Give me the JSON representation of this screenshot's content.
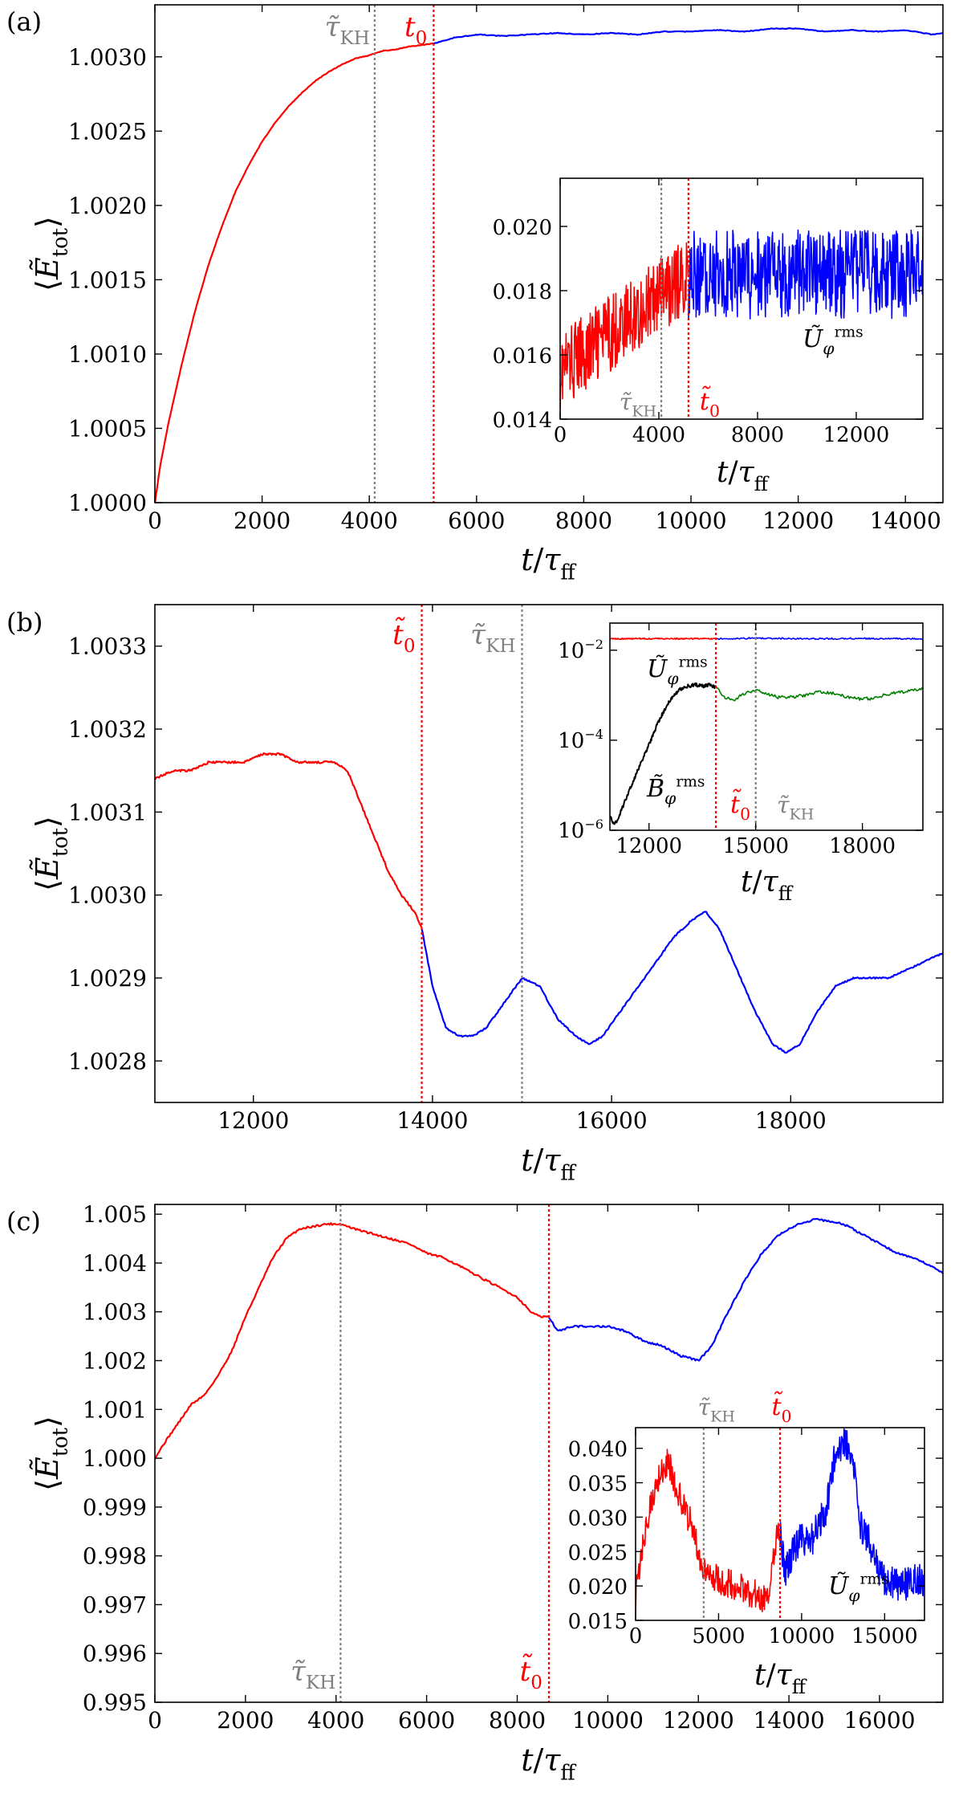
{
  "chart_data": [
    {
      "type": "line",
      "panel_label": "(a)",
      "xlabel": "t/τ_ff",
      "ylabel": "⟨Ẽ_tot⟩",
      "xlim": [
        0,
        14700
      ],
      "ylim": [
        1.0,
        1.00335
      ],
      "xticks": [
        "0",
        "2000",
        "4000",
        "6000",
        "8000",
        "10000",
        "12000",
        "14000"
      ],
      "yticks": [
        "1.0000",
        "1.0005",
        "1.0010",
        "1.0015",
        "1.0020",
        "1.0025",
        "1.0030"
      ],
      "vlines": [
        {
          "x": 4100,
          "label": "τ̃_KH",
          "color": "#808080"
        },
        {
          "x": 5200,
          "label": "t_0",
          "color": "#ff0000"
        }
      ],
      "series": [
        {
          "color": "#ff0000",
          "x": [
            0,
            100,
            250,
            500,
            750,
            1000,
            1250,
            1500,
            1750,
            2000,
            2250,
            2500,
            2750,
            3000,
            3250,
            3500,
            3750,
            4000,
            4250,
            4500,
            4750,
            5000,
            5200
          ],
          "y": [
            1.0,
            1.00025,
            1.00053,
            1.00093,
            1.00129,
            1.0016,
            1.00186,
            1.00209,
            1.00227,
            1.00243,
            1.00256,
            1.00267,
            1.00276,
            1.00284,
            1.0029,
            1.00295,
            1.00299,
            1.00301,
            1.00304,
            1.00305,
            1.00307,
            1.00308,
            1.00309
          ]
        },
        {
          "color": "#0000ff",
          "x": [
            5200,
            5600,
            6000,
            6500,
            7000,
            7500,
            8000,
            8500,
            9000,
            9500,
            10000,
            10500,
            11000,
            11500,
            12000,
            12500,
            13000,
            13500,
            14000,
            14500,
            14700
          ],
          "y": [
            1.00309,
            1.00313,
            1.00315,
            1.00314,
            1.00315,
            1.00316,
            1.00315,
            1.00316,
            1.00315,
            1.00317,
            1.00317,
            1.00318,
            1.00317,
            1.00319,
            1.00319,
            1.00317,
            1.00318,
            1.00317,
            1.00318,
            1.00315,
            1.00316
          ]
        }
      ],
      "inset": {
        "type": "line",
        "xlabel": "t/τ_ff",
        "xlim": [
          0,
          14700
        ],
        "ylim": [
          0.014,
          0.0215
        ],
        "xticks": [
          "0",
          "4000",
          "8000",
          "12000"
        ],
        "yticks": [
          "0.014",
          "0.016",
          "0.018",
          "0.020"
        ],
        "series_label": "Ũ_φ^rms",
        "vlines": [
          {
            "x": 4100,
            "label": "τ̃_KH",
            "color": "#808080"
          },
          {
            "x": 5200,
            "label": "t̃_0",
            "color": "#ff0000"
          }
        ],
        "series": [
          {
            "color": "#ff0000",
            "x_range": [
              0,
              5200
            ],
            "mean": [
              0.0155,
              0.0185
            ],
            "noise": 0.0012
          },
          {
            "color": "#0000ff",
            "x_range": [
              5200,
              14700
            ],
            "mean": [
              0.0185,
              0.0185
            ],
            "noise": 0.0014
          }
        ]
      }
    },
    {
      "type": "line",
      "panel_label": "(b)",
      "xlabel": "t/τ_ff",
      "ylabel": "⟨Ẽ_tot⟩",
      "xlim": [
        10900,
        19700
      ],
      "ylim": [
        1.00275,
        1.00335
      ],
      "xticks": [
        "12000",
        "14000",
        "16000",
        "18000"
      ],
      "yticks": [
        "1.0028",
        "1.0029",
        "1.0030",
        "1.0031",
        "1.0032",
        "1.0033"
      ],
      "vlines": [
        {
          "x": 13880,
          "label": "t̃_0",
          "color": "#ff0000"
        },
        {
          "x": 15000,
          "label": "τ̃_KH",
          "color": "#808080"
        }
      ],
      "series": [
        {
          "color": "#ff0000",
          "x": [
            10900,
            11100,
            11300,
            11500,
            11700,
            11900,
            12100,
            12300,
            12500,
            12700,
            12900,
            13050,
            13200,
            13350,
            13500,
            13650,
            13800,
            13880
          ],
          "y": [
            1.00314,
            1.00315,
            1.00315,
            1.00316,
            1.00316,
            1.00316,
            1.00317,
            1.00317,
            1.00316,
            1.00316,
            1.00316,
            1.00315,
            1.00311,
            1.00307,
            1.00303,
            1.003,
            1.00298,
            1.00296
          ]
        },
        {
          "color": "#0000ff",
          "x": [
            13880,
            14000,
            14150,
            14300,
            14450,
            14600,
            14800,
            15000,
            15200,
            15400,
            15600,
            15750,
            15900,
            16100,
            16300,
            16500,
            16700,
            16900,
            17050,
            17200,
            17400,
            17600,
            17800,
            17950,
            18100,
            18300,
            18500,
            18700,
            18900,
            19100,
            19300,
            19500,
            19700
          ],
          "y": [
            1.00296,
            1.00289,
            1.00284,
            1.00283,
            1.00283,
            1.00284,
            1.00287,
            1.0029,
            1.00289,
            1.00285,
            1.00283,
            1.00282,
            1.00283,
            1.00286,
            1.00289,
            1.00292,
            1.00295,
            1.00297,
            1.00298,
            1.00296,
            1.00291,
            1.00286,
            1.00282,
            1.00281,
            1.00282,
            1.00286,
            1.00289,
            1.0029,
            1.0029,
            1.0029,
            1.00291,
            1.00292,
            1.00293
          ]
        }
      ],
      "inset": {
        "type": "line",
        "yscale": "log",
        "xlabel": "t/τ_ff",
        "xlim": [
          10900,
          19700
        ],
        "ylim": [
          1e-06,
          0.04
        ],
        "xticks": [
          "12000",
          "15000",
          "18000"
        ],
        "yticks": [
          "10^-6",
          "10^-4",
          "10^-2"
        ],
        "labels": [
          "Ũ_φ^rms",
          "B̃_φ^rms",
          "t̃_0",
          "τ̃_KH"
        ],
        "vlines": [
          {
            "x": 13880,
            "color": "#ff0000"
          },
          {
            "x": 15000,
            "color": "#808080"
          }
        ],
        "series": [
          {
            "color": "#ff0000",
            "x": [
              10900,
              13880
            ],
            "y": [
              0.018,
              0.018
            ]
          },
          {
            "color": "#0000ff",
            "x": [
              13880,
              15000,
              16500,
              18000,
              19700
            ],
            "y": [
              0.018,
              0.0185,
              0.018,
              0.0182,
              0.018
            ]
          },
          {
            "color": "#000000",
            "x": [
              10900,
              11000,
              11100,
              11300,
              11600,
              12000,
              12300,
              12600,
              12900,
              13100,
              13300,
              13500,
              13700,
              13880
            ],
            "y": [
              2e-06,
              1.4e-06,
              1.6e-06,
              4e-06,
              1.5e-05,
              8e-05,
              0.0003,
              0.0008,
              0.0014,
              0.0016,
              0.0017,
              0.0016,
              0.0017,
              0.0015
            ]
          },
          {
            "color": "#008000",
            "x": [
              13880,
              14100,
              14400,
              14700,
              15000,
              15300,
              15600,
              16000,
              16400,
              16800,
              17200,
              17600,
              18000,
              18400,
              18800,
              19200,
              19700
            ],
            "y": [
              0.0015,
              0.0009,
              0.0008,
              0.0011,
              0.0013,
              0.0011,
              0.0009,
              0.0009,
              0.001,
              0.0012,
              0.0011,
              0.0009,
              0.0008,
              0.0009,
              0.0011,
              0.0012,
              0.0014
            ]
          }
        ]
      }
    },
    {
      "type": "line",
      "panel_label": "(c)",
      "xlabel": "t/τ_ff",
      "ylabel": "⟨Ẽ_tot⟩",
      "xlim": [
        0,
        17400
      ],
      "ylim": [
        0.995,
        1.0052
      ],
      "xticks": [
        "0",
        "2000",
        "4000",
        "6000",
        "8000",
        "10000",
        "12000",
        "14000",
        "16000"
      ],
      "yticks": [
        "0.995",
        "0.996",
        "0.997",
        "0.998",
        "0.999",
        "1.000",
        "1.001",
        "1.002",
        "1.003",
        "1.004",
        "1.005"
      ],
      "vlines": [
        {
          "x": 4100,
          "label": "τ̃_KH",
          "color": "#808080"
        },
        {
          "x": 8700,
          "label": "t̃_0",
          "color": "#ff0000"
        }
      ],
      "series": [
        {
          "color": "#ff0000",
          "x": [
            0,
            200,
            500,
            800,
            1100,
            1400,
            1700,
            2000,
            2300,
            2600,
            2900,
            3200,
            3500,
            3800,
            4100,
            4400,
            4800,
            5200,
            5600,
            6000,
            6400,
            6800,
            7200,
            7600,
            8000,
            8300,
            8500,
            8700
          ],
          "y": [
            1.0,
            1.0003,
            1.0007,
            1.0011,
            1.0013,
            1.0017,
            1.0022,
            1.0029,
            1.0035,
            1.0041,
            1.0045,
            1.0047,
            1.00475,
            1.0048,
            1.0048,
            1.0047,
            1.0046,
            1.0045,
            1.0044,
            1.0042,
            1.0041,
            1.0039,
            1.0037,
            1.0035,
            1.0033,
            1.003,
            1.0029,
            1.0029
          ]
        },
        {
          "color": "#0000ff",
          "x": [
            8700,
            8900,
            9200,
            9600,
            10000,
            10400,
            10800,
            11200,
            11600,
            12000,
            12300,
            12600,
            13000,
            13400,
            13800,
            14200,
            14600,
            14900,
            15200,
            15600,
            16000,
            16400,
            16800,
            17200,
            17400
          ],
          "y": [
            1.0029,
            1.0026,
            1.0027,
            1.0027,
            1.0027,
            1.0026,
            1.0024,
            1.0023,
            1.0021,
            1.002,
            1.0023,
            1.0029,
            1.0036,
            1.0042,
            1.0046,
            1.0048,
            1.0049,
            1.00485,
            1.0048,
            1.0046,
            1.0044,
            1.0042,
            1.0041,
            1.0039,
            1.0038
          ]
        }
      ],
      "inset": {
        "type": "line",
        "xlabel": "t/τ_ff",
        "xlim": [
          0,
          17400
        ],
        "ylim": [
          0.015,
          0.043
        ],
        "xticks": [
          "0",
          "5000",
          "10000",
          "15000"
        ],
        "yticks": [
          "0.015",
          "0.020",
          "0.025",
          "0.030",
          "0.035",
          "0.040"
        ],
        "series_label": "Ũ_φ^rms",
        "vlines": [
          {
            "x": 4100,
            "label": "τ̃_KH",
            "color": "#808080"
          },
          {
            "x": 8700,
            "label": "t̃_0",
            "color": "#ff0000"
          }
        ],
        "series": [
          {
            "color": "#ff0000",
            "x": [
              0,
              500,
              1000,
              1500,
              2000,
              2500,
              3000,
              3500,
              4000,
              5000,
              6000,
              7000,
              8000,
              8400,
              8700
            ],
            "y": [
              0.018,
              0.027,
              0.033,
              0.037,
              0.038,
              0.034,
              0.031,
              0.028,
              0.023,
              0.021,
              0.02,
              0.019,
              0.018,
              0.026,
              0.028
            ]
          },
          {
            "color": "#0000ff",
            "x": [
              8700,
              9000,
              9500,
              10000,
              10500,
              11000,
              11500,
              12000,
              12500,
              13000,
              13500,
              14000,
              14500,
              15000,
              16000,
              17000,
              17400
            ],
            "y": [
              0.028,
              0.022,
              0.025,
              0.027,
              0.026,
              0.029,
              0.031,
              0.039,
              0.041,
              0.04,
              0.029,
              0.027,
              0.023,
              0.021,
              0.02,
              0.021,
              0.02
            ]
          }
        ]
      }
    }
  ]
}
